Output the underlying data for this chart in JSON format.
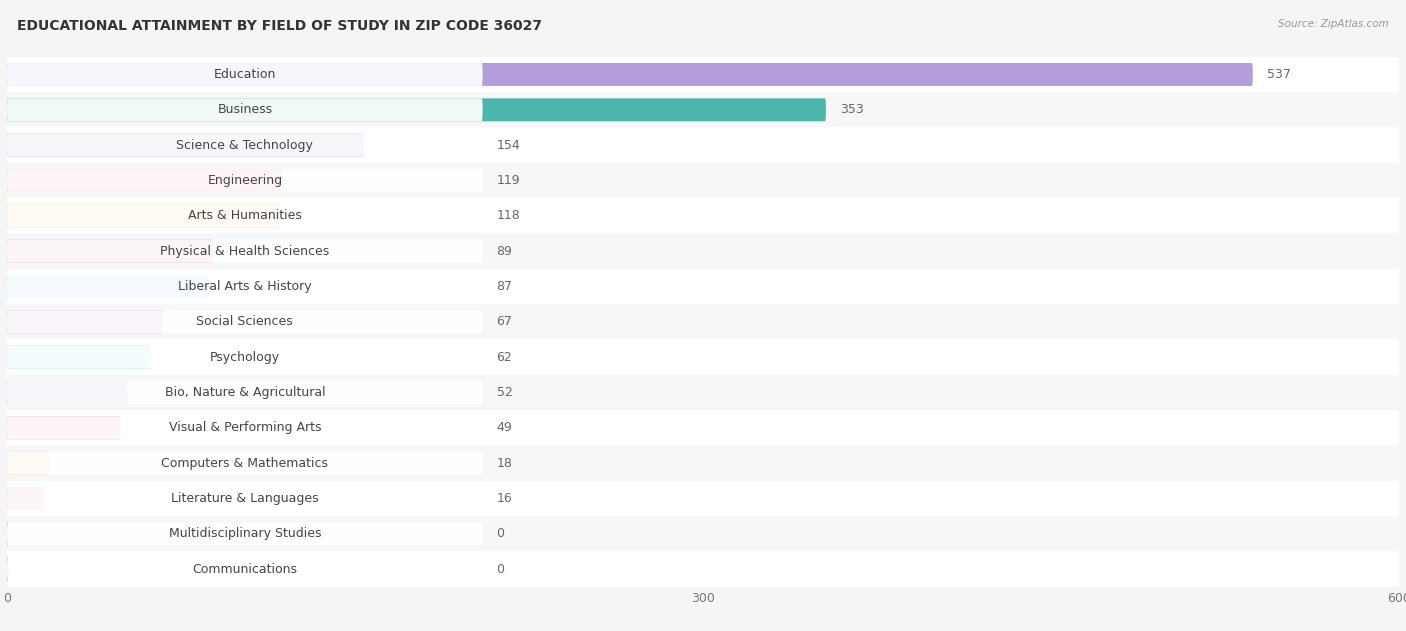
{
  "title": "EDUCATIONAL ATTAINMENT BY FIELD OF STUDY IN ZIP CODE 36027",
  "source": "Source: ZipAtlas.com",
  "categories": [
    "Education",
    "Business",
    "Science & Technology",
    "Engineering",
    "Arts & Humanities",
    "Physical & Health Sciences",
    "Liberal Arts & History",
    "Social Sciences",
    "Psychology",
    "Bio, Nature & Agricultural",
    "Visual & Performing Arts",
    "Computers & Mathematics",
    "Literature & Languages",
    "Multidisciplinary Studies",
    "Communications"
  ],
  "values": [
    537,
    353,
    154,
    119,
    118,
    89,
    87,
    67,
    62,
    52,
    49,
    18,
    16,
    0,
    0
  ],
  "bar_colors": [
    "#b39ddb",
    "#4db6ac",
    "#9fa8da",
    "#f48fb1",
    "#ffcc80",
    "#ef9a9a",
    "#90caf9",
    "#ce93d8",
    "#80deea",
    "#9fa8da",
    "#f48fb1",
    "#ffcc80",
    "#ef9a9a",
    "#90caf9",
    "#ce93d8"
  ],
  "xlim": [
    0,
    600
  ],
  "xticks": [
    0,
    300,
    600
  ],
  "background_color": "#f5f5f5",
  "row_bg_color_odd": "#ffffff",
  "row_bg_color_even": "#f0f0f0",
  "title_fontsize": 10,
  "label_fontsize": 9,
  "value_fontsize": 9
}
